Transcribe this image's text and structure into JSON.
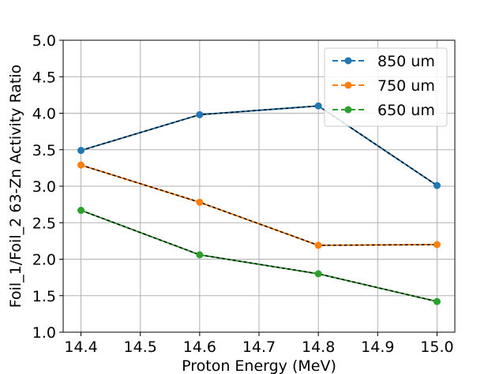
{
  "chart_data": {
    "type": "line",
    "title": "",
    "xlabel": "Proton Energy (MeV)",
    "ylabel": "Foil_1/Foil_2 63-Zn Activity Ratio",
    "x": [
      14.4,
      14.6,
      14.8,
      15.0
    ],
    "xlim": [
      14.37,
      15.03
    ],
    "ylim": [
      1.0,
      5.0
    ],
    "xticks": [
      14.4,
      14.5,
      14.6,
      14.7,
      14.8,
      14.9,
      15.0
    ],
    "xtick_labels": [
      "14.4",
      "14.5",
      "14.6",
      "14.7",
      "14.8",
      "14.9",
      "15.0"
    ],
    "yticks": [
      1.0,
      1.5,
      2.0,
      2.5,
      3.0,
      3.5,
      4.0,
      4.5,
      5.0
    ],
    "ytick_labels": [
      "1.0",
      "1.5",
      "2.0",
      "2.5",
      "3.0",
      "3.5",
      "4.0",
      "4.5",
      "5.0"
    ],
    "grid": true,
    "legend_position": "top-right",
    "series": [
      {
        "name": "850 um",
        "color": "#1f77b4",
        "values": [
          3.49,
          3.98,
          4.1,
          3.01
        ]
      },
      {
        "name": "750 um",
        "color": "#ff7f0e",
        "values": [
          3.29,
          2.78,
          2.19,
          2.2
        ]
      },
      {
        "name": "650 um",
        "color": "#2ca02c",
        "values": [
          2.67,
          2.06,
          1.8,
          1.42
        ]
      }
    ]
  }
}
